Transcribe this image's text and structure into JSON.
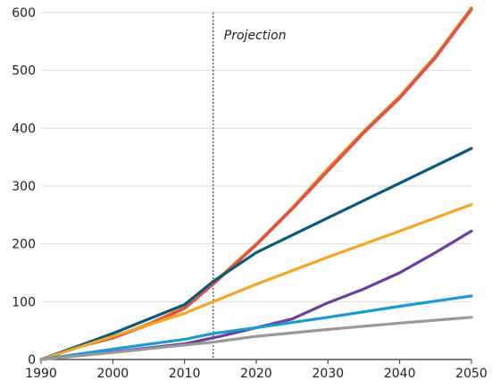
{
  "chart_data": {
    "type": "line",
    "title": "",
    "xlabel": "",
    "ylabel": "",
    "xlim": [
      1990,
      2050
    ],
    "ylim": [
      0,
      600
    ],
    "x_ticks": [
      1990,
      2000,
      2010,
      2020,
      2030,
      2040,
      2050
    ],
    "y_ticks": [
      0,
      100,
      200,
      300,
      400,
      500,
      600
    ],
    "grid": "horizontal",
    "legend": "none",
    "annotations": [
      {
        "type": "vline",
        "x": 2014,
        "style": "dotted",
        "label": "Projection"
      }
    ],
    "series": [
      {
        "color": "#FF7F00",
        "points": [
          [
            1990,
            0
          ],
          [
            1995,
            22
          ],
          [
            2000,
            38
          ],
          [
            2005,
            62
          ],
          [
            2010,
            90
          ],
          [
            2014,
            132
          ],
          [
            2020,
            200
          ],
          [
            2025,
            262
          ],
          [
            2030,
            330
          ],
          [
            2035,
            395
          ],
          [
            2040,
            455
          ],
          [
            2045,
            525
          ],
          [
            2050,
            608
          ]
        ]
      },
      {
        "color": "#D9534F",
        "points": [
          [
            1990,
            0
          ],
          [
            1995,
            21
          ],
          [
            2000,
            37
          ],
          [
            2005,
            60
          ],
          [
            2010,
            88
          ],
          [
            2014,
            130
          ],
          [
            2020,
            198
          ],
          [
            2025,
            260
          ],
          [
            2030,
            326
          ],
          [
            2035,
            392
          ],
          [
            2040,
            452
          ],
          [
            2045,
            522
          ],
          [
            2050,
            605
          ]
        ]
      },
      {
        "color": "#0B5A7E",
        "points": [
          [
            1990,
            0
          ],
          [
            2000,
            45
          ],
          [
            2010,
            95
          ],
          [
            2014,
            135
          ],
          [
            2020,
            185
          ],
          [
            2030,
            245
          ],
          [
            2040,
            305
          ],
          [
            2050,
            365
          ]
        ]
      },
      {
        "color": "#F5A623",
        "points": [
          [
            1990,
            0
          ],
          [
            2000,
            40
          ],
          [
            2010,
            80
          ],
          [
            2014,
            100
          ],
          [
            2020,
            130
          ],
          [
            2030,
            177
          ],
          [
            2040,
            222
          ],
          [
            2050,
            268
          ]
        ]
      },
      {
        "color": "#6B3FA0",
        "points": [
          [
            1990,
            0
          ],
          [
            1995,
            8
          ],
          [
            2000,
            13
          ],
          [
            2005,
            20
          ],
          [
            2010,
            27
          ],
          [
            2015,
            40
          ],
          [
            2020,
            55
          ],
          [
            2025,
            70
          ],
          [
            2030,
            98
          ],
          [
            2035,
            122
          ],
          [
            2040,
            150
          ],
          [
            2045,
            185
          ],
          [
            2050,
            222
          ]
        ]
      },
      {
        "color": "#1A9BD3",
        "points": [
          [
            1990,
            0
          ],
          [
            2000,
            18
          ],
          [
            2010,
            35
          ],
          [
            2014,
            45
          ],
          [
            2020,
            55
          ],
          [
            2030,
            73
          ],
          [
            2040,
            92
          ],
          [
            2050,
            110
          ]
        ]
      },
      {
        "color": "#999999",
        "points": [
          [
            1990,
            0
          ],
          [
            2000,
            12
          ],
          [
            2010,
            25
          ],
          [
            2014,
            30
          ],
          [
            2020,
            40
          ],
          [
            2030,
            52
          ],
          [
            2040,
            63
          ],
          [
            2050,
            73
          ]
        ]
      }
    ]
  }
}
